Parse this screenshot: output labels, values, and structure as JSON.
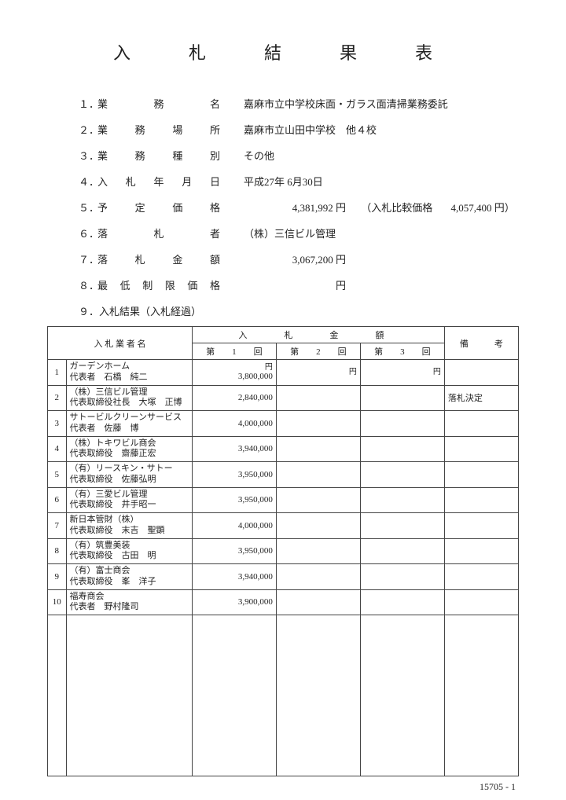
{
  "title": "入　札　結　果　表",
  "fields": [
    {
      "num": "１．",
      "label": "業　　務　　名",
      "value": "嘉麻市立中学校床面・ガラス面清掃業務委託"
    },
    {
      "num": "２．",
      "label": "業　務　場　所",
      "value": "嘉麻市立山田中学校　他４校"
    },
    {
      "num": "３．",
      "label": "業　務　種　別",
      "value": "その他"
    },
    {
      "num": "４．",
      "label": "入 札 年 月 日",
      "value": "平成27年 6月30日"
    },
    {
      "num": "５．",
      "label": "予　定　価　格",
      "value_amount": "4,381,992 円",
      "compare_label": "（入札比較価格",
      "compare_value": "4,057,400 円）"
    },
    {
      "num": "６．",
      "label": "落　　札　　者",
      "value": "（株）三信ビル管理"
    },
    {
      "num": "７．",
      "label": "落　札　金　額",
      "value_amount": "3,067,200 円"
    },
    {
      "num": "８．",
      "label": "最 低 制 限 価 格",
      "value_amount": "円"
    }
  ],
  "section9": "９．入札結果（入札経過）",
  "table": {
    "headers": {
      "bidder": "入 札 業 者 名",
      "amount_group": "入　札　金　額",
      "round1": "第　　1　　回",
      "round2": "第　　2　　回",
      "round3": "第　　3　　回",
      "note": "備　　　考",
      "yen": "円"
    },
    "rows": [
      {
        "n": "1",
        "name1": "ガーデンホーム",
        "name2": "代表者　石橋　純二",
        "amt1": "3,800,000",
        "note": ""
      },
      {
        "n": "2",
        "name1": "（株）三信ビル管理",
        "name2": "代表取締役社長　大塚　正博",
        "amt1": "2,840,000",
        "note": "落札決定"
      },
      {
        "n": "3",
        "name1": "サトービルクリーンサービス",
        "name2": "代表者　佐藤　博",
        "amt1": "4,000,000",
        "note": ""
      },
      {
        "n": "4",
        "name1": "（株）トキワビル商会",
        "name2": "代表取締役　齋藤正宏",
        "amt1": "3,940,000",
        "note": ""
      },
      {
        "n": "5",
        "name1": "（有）リースキン・サトー",
        "name2": "代表取締役　佐藤弘明",
        "amt1": "3,950,000",
        "note": ""
      },
      {
        "n": "6",
        "name1": "（有）三愛ビル管理",
        "name2": "代表取締役　井手昭一",
        "amt1": "3,950,000",
        "note": ""
      },
      {
        "n": "7",
        "name1": "新日本管財（株）",
        "name2": "代表取締役　末吉　聖顕",
        "amt1": "4,000,000",
        "note": ""
      },
      {
        "n": "8",
        "name1": "（有）筑豊美装",
        "name2": "代表取締役　古田　明",
        "amt1": "3,950,000",
        "note": ""
      },
      {
        "n": "9",
        "name1": "（有）富士商会",
        "name2": "代表取締役　峯　洋子",
        "amt1": "3,940,000",
        "note": ""
      },
      {
        "n": "10",
        "name1": "福寿商会",
        "name2": "代表者　野村隆司",
        "amt1": "3,900,000",
        "note": ""
      }
    ]
  },
  "footer_code": "15705 - 1"
}
